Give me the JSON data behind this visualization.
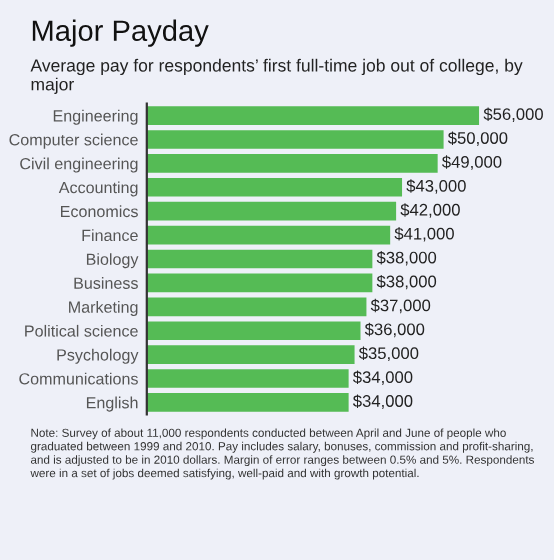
{
  "chart_data": {
    "type": "bar",
    "orientation": "horizontal",
    "title": "Major Payday",
    "subtitle": "Average pay for respondents’ first full-time job out of college, by major",
    "categories": [
      "Engineering",
      "Computer science",
      "Civil engineering",
      "Accounting",
      "Economics",
      "Finance",
      "Biology",
      "Business",
      "Marketing",
      "Political science",
      "Psychology",
      "Communications",
      "English"
    ],
    "values": [
      56000,
      50000,
      49000,
      43000,
      42000,
      41000,
      38000,
      38000,
      37000,
      36000,
      35000,
      34000,
      34000
    ],
    "value_labels": [
      "$56,000",
      "$50,000",
      "$49,000",
      "$43,000",
      "$42,000",
      "$41,000",
      "$38,000",
      "$38,000",
      "$37,000",
      "$36,000",
      "$35,000",
      "$34,000",
      "$34,000"
    ],
    "color": "#55bb55",
    "annotations": [
      "Note: Survey of about 11,000 respondents conducted between April and June of people who graduated between 1999 and 2010. Pay includes salary, bonuses, commission and profit-sharing, and is adjusted to be in 2010 dollars. Margin of error ranges between 0.5% and 5%. Respondents were in a set of jobs deemed satisfying, well-paid and with growth potential."
    ]
  }
}
